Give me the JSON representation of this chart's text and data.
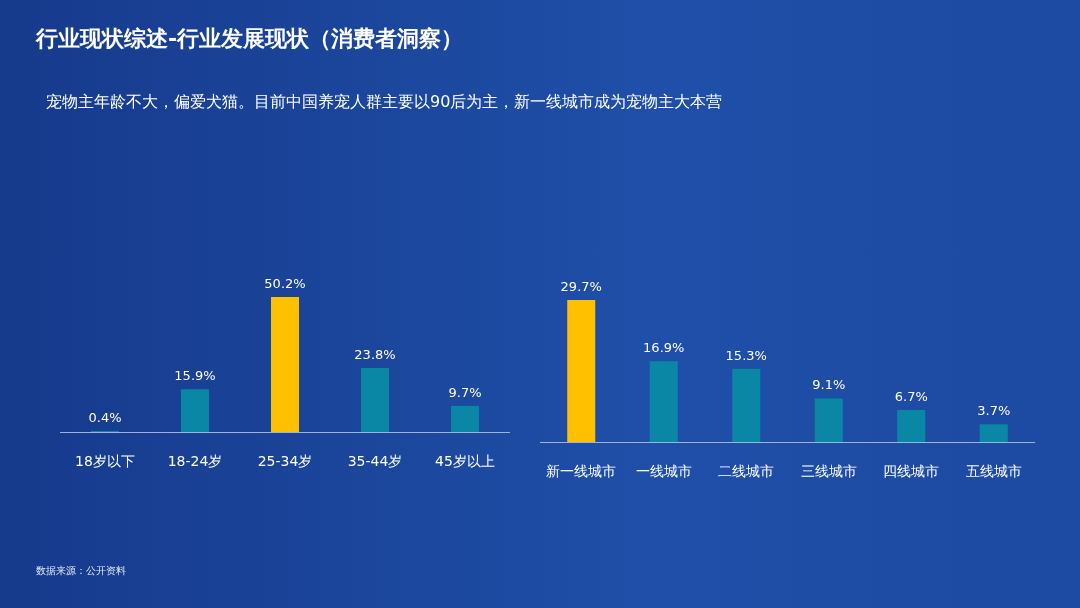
{
  "chart_data": [
    {
      "type": "bar",
      "title": "行业现状综述-行业发展现状（消费者洞察）",
      "subtitle": "宠物主年龄不大，偏爱犬猫。目前中国养宠人群主要以90后为主，新一线城市成为宠物主大本营",
      "annotations": [
        "数据来源：公开资料"
      ],
      "categories": [
        "18岁以下",
        "18-24岁",
        "25-34岁",
        "35-44岁",
        "45岁以上"
      ],
      "values": [
        0.4,
        15.9,
        50.2,
        23.8,
        9.7
      ],
      "colors": [
        "#0b87a6",
        "#0b87a6",
        "#ffc000",
        "#0b87a6",
        "#0b87a6"
      ],
      "value_labels": [
        "0.4%",
        "15.9%",
        "50.2%",
        "23.8%",
        "9.7%"
      ]
    },
    {
      "type": "bar",
      "categories": [
        "新一线城市",
        "一线城市",
        "二线城市",
        "三线城市",
        "四线城市",
        "五线城市"
      ],
      "values": [
        29.7,
        16.9,
        15.3,
        9.1,
        6.7,
        3.7
      ],
      "colors": [
        "#ffc000",
        "#0b87a6",
        "#0b87a6",
        "#0b87a6",
        "#0b87a6",
        "#0b87a6"
      ],
      "value_labels": [
        "29.7%",
        "16.9%",
        "15.3%",
        "9.1%",
        "6.7%",
        "3.7%"
      ]
    }
  ]
}
